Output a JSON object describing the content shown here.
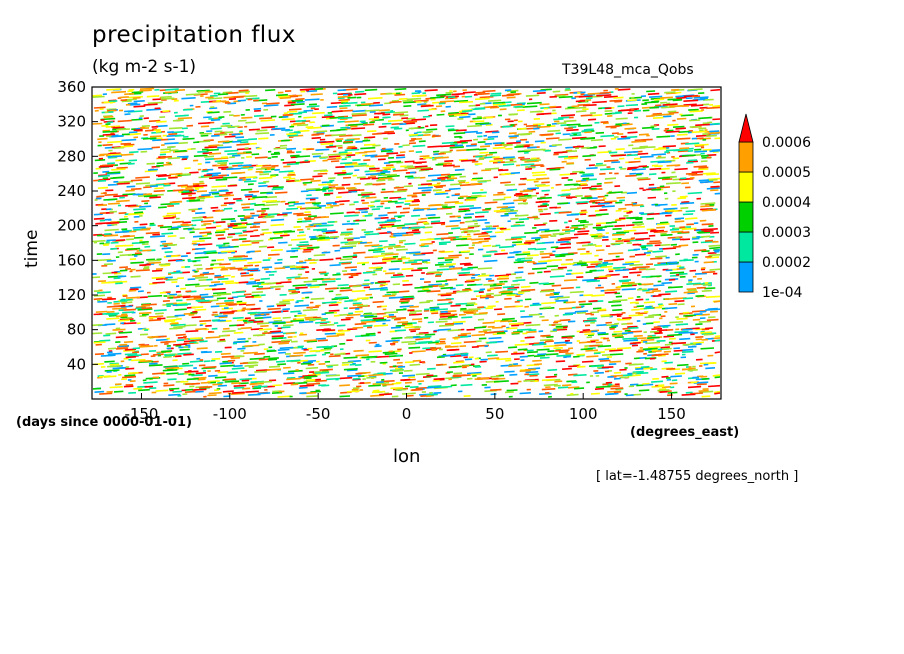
{
  "chart_data": {
    "type": "heatmap",
    "title": "precipitation flux",
    "units": "(kg m-2 s-1)",
    "run_label": "T39L48_mca_Qobs",
    "xlabel": "lon",
    "ylabel": "time",
    "x_units": "(degrees_east)",
    "time_units": "(days since 0000-01-01)",
    "footnote": "[ lat=-1.48755 degrees_north ]",
    "xlim": [
      -178,
      178
    ],
    "ylim": [
      0,
      360
    ],
    "x_ticks": [
      -150,
      -100,
      -50,
      0,
      50,
      100,
      150
    ],
    "x_tick_labels": [
      "-150",
      "-100",
      "-50",
      "0",
      "50",
      "100",
      "150"
    ],
    "y_ticks": [
      40,
      80,
      120,
      160,
      200,
      240,
      280,
      320,
      360
    ],
    "y_tick_labels": [
      "40",
      "80",
      "120",
      "160",
      "200",
      "240",
      "280",
      "320",
      "360"
    ],
    "colorbar": {
      "levels": [
        0.0001,
        0.0002,
        0.0003,
        0.0004,
        0.0005,
        0.0006
      ],
      "labels": [
        "1e-04",
        "0.0002",
        "0.0003",
        "0.0004",
        "0.0005",
        "0.0006"
      ],
      "colors": [
        "#00a0ff",
        "#00e8a0",
        "#00d000",
        "#ffff00",
        "#ffa000",
        "#ff0000"
      ],
      "extend": "max"
    },
    "field_colors": [
      "#ff0000",
      "#00d000",
      "#00e8a0",
      "#00a0ff",
      "#ffff00",
      "#ffa000",
      "#a0e632",
      "#ff5a00"
    ],
    "grid": false
  }
}
